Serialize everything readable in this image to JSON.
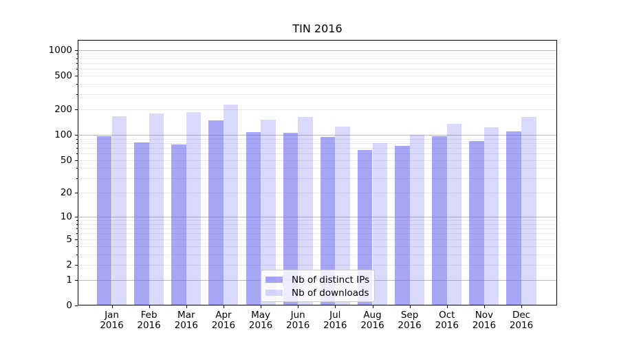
{
  "chart_data": {
    "type": "bar",
    "title": "TIN 2016",
    "y_scale": "symlog (pixel position proportional to ln(1+v))",
    "ylim": [
      0,
      1270
    ],
    "grid": "horizontal major and minor gridlines",
    "legend_position": "lower center",
    "categories": [
      "Jan 2016",
      "Feb 2016",
      "Mar 2016",
      "Apr 2016",
      "May 2016",
      "Jun 2016",
      "Jul 2016",
      "Aug 2016",
      "Sep 2016",
      "Oct 2016",
      "Nov 2016",
      "Dec 2016"
    ],
    "series": [
      {
        "name": "Nb of distinct IPs",
        "color": "rgba(102,102,238,0.58)",
        "values": [
          97,
          81,
          77,
          147,
          107,
          106,
          94,
          66,
          74,
          96,
          85,
          110
        ]
      },
      {
        "name": "Nb of downloads",
        "color": "rgba(102,102,238,0.25)",
        "values": [
          166,
          178,
          184,
          228,
          150,
          164,
          126,
          80,
          100,
          134,
          124,
          164
        ]
      }
    ]
  },
  "axis": {
    "y_ticks": [
      {
        "value": 0,
        "label": "0"
      },
      {
        "value": 1,
        "label": "1"
      },
      {
        "value": 2,
        "label": "2"
      },
      {
        "value": 5,
        "label": "5"
      },
      {
        "value": 10,
        "label": "10"
      },
      {
        "value": 20,
        "label": "20"
      },
      {
        "value": 50,
        "label": "50"
      },
      {
        "value": 100,
        "label": "100"
      },
      {
        "value": 200,
        "label": "200"
      },
      {
        "value": 500,
        "label": "500"
      },
      {
        "value": 1000,
        "label": "1000"
      }
    ],
    "y_major_gridlines": [
      1,
      10,
      100,
      1000
    ],
    "y_minor_unlabeled": [
      3,
      4,
      6,
      7,
      8,
      9,
      30,
      40,
      60,
      70,
      80,
      90,
      300,
      400,
      600,
      700,
      800,
      900
    ],
    "x_months": [
      "Jan",
      "Feb",
      "Mar",
      "Apr",
      "May",
      "Jun",
      "Jul",
      "Aug",
      "Sep",
      "Oct",
      "Nov",
      "Dec"
    ],
    "x_year": "2016"
  },
  "colors": {
    "bar_base": "#6666ee",
    "major_grid": "#b9b9b9",
    "minor_grid": "#e9e9e9",
    "spine": "#000000",
    "legend_border": "#cccccc"
  }
}
